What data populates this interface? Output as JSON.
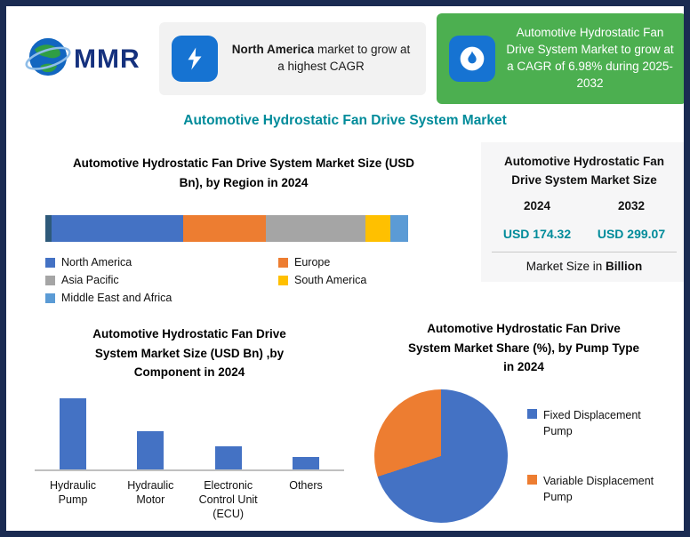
{
  "logo": {
    "text": "MMR"
  },
  "header": {
    "callout_north_america": {
      "icon": "lightning-bolt-icon",
      "bold": "North America",
      "rest": " market to grow at a highest CAGR"
    },
    "callout_cagr": {
      "icon": "flame-icon",
      "text": "Automotive Hydrostatic Fan Drive System Market to grow at a CAGR of 6.98% during 2025-2032"
    }
  },
  "main_title": "Automotive Hydrostatic Fan Drive System Market",
  "size_panel": {
    "title": "Automotive Hydrostatic Fan Drive System Market Size",
    "year_left": "2024",
    "year_right": "2032",
    "value_left": "USD 174.32",
    "value_right": "USD 299.07",
    "footer_plain": "Market Size in ",
    "footer_bold": "Billion"
  },
  "colors": {
    "frame_border": "#1a2b52",
    "accent_teal": "#008b9a",
    "callout_green": "#4caf50",
    "icon_blue": "#1673d2",
    "chart_blue": "#4472C4",
    "chart_orange": "#ED7D31",
    "chart_gray": "#A5A5A5",
    "chart_yellow": "#FFC000",
    "chart_lightblue": "#5B9BD5"
  },
  "chart_data": [
    {
      "id": "region",
      "type": "bar",
      "variant": "stacked-horizontal",
      "title": "Automotive Hydrostatic Fan Drive System Market Size (USD Bn), by Region in 2024",
      "segments": [
        {
          "label": "North America",
          "share_pct": 37,
          "color": "#4472C4"
        },
        {
          "label": "Europe",
          "share_pct": 23,
          "color": "#ED7D31"
        },
        {
          "label": "Asia Pacific",
          "share_pct": 28,
          "color": "#A5A5A5"
        },
        {
          "label": "South America",
          "share_pct": 7,
          "color": "#FFC000"
        },
        {
          "label": "Middle East and Africa",
          "share_pct": 5,
          "color": "#5B9BD5"
        }
      ],
      "legend_position": "below",
      "value_note": "segment shares estimated from bar widths; axis unlabeled"
    },
    {
      "id": "component",
      "type": "bar",
      "title": "Automotive Hydrostatic Fan Drive System Market Size (USD Bn) ,by Component in 2024",
      "categories": [
        "Hydraulic Pump",
        "Hydraulic Motor",
        "Electronic Control Unit (ECU)",
        "Others"
      ],
      "values": [
        100,
        54,
        32,
        18
      ],
      "bar_color": "#4472C4",
      "value_note": "relative bar heights (max=100); axis unlabeled"
    },
    {
      "id": "pump",
      "type": "pie",
      "title": "Automotive Hydrostatic Fan Drive System Market Share (%), by Pump Type in 2024",
      "slices": [
        {
          "label": "Fixed Displacement Pump",
          "value_pct": 70,
          "color": "#4472C4"
        },
        {
          "label": "Variable Displacement Pump",
          "value_pct": 30,
          "color": "#ED7D31"
        }
      ],
      "legend_position": "right",
      "value_note": "slice shares estimated from pie angles; no data labels shown"
    }
  ]
}
